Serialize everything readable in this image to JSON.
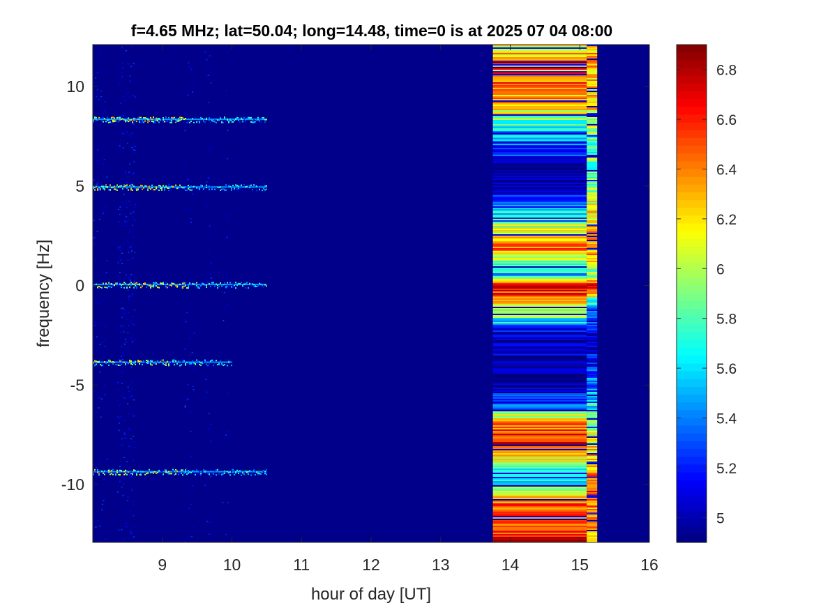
{
  "chart_data": {
    "type": "heatmap",
    "title": "f=4.65 MHz;  lat=50.04; long=14.48, time=0 is at 2025 07 04 08:00",
    "xlabel": "hour of day [UT]",
    "ylabel": "frequency [Hz]",
    "xlim": [
      8.0,
      16.0
    ],
    "ylim": [
      -12.9,
      12.1
    ],
    "xticks": [
      9,
      10,
      11,
      12,
      13,
      14,
      15,
      16
    ],
    "yticks": [
      10,
      5,
      0,
      -5,
      -10
    ],
    "background_value": 4.92,
    "colorbar": {
      "colormap": "jet",
      "clim": [
        4.9,
        6.9
      ],
      "ticks": [
        6.8,
        6.6,
        6.4,
        6.2,
        6.0,
        5.8,
        5.6,
        5.4,
        5.2,
        5.0
      ],
      "tick_labels": [
        "6.8",
        "6.6",
        "6.4",
        "6.2",
        "6",
        "5.8",
        "5.6",
        "5.4",
        "5.2",
        "5"
      ]
    },
    "signal_traces": [
      {
        "frequency": 8.35,
        "x_start": 8.0,
        "x_end": 10.5
      },
      {
        "frequency": 4.95,
        "x_start": 8.0,
        "x_end": 10.5
      },
      {
        "frequency": 0.05,
        "x_start": 8.0,
        "x_end": 10.5
      },
      {
        "frequency": -3.85,
        "x_start": 8.0,
        "x_end": 10.0
      },
      {
        "frequency": -9.35,
        "x_start": 8.0,
        "x_end": 10.5
      }
    ],
    "broadband_blocks": [
      {
        "x_start": 13.75,
        "x_end": 15.1,
        "profile": [
          {
            "frequency": 12.1,
            "value": 6.2
          },
          {
            "frequency": 11.0,
            "value": 6.4
          },
          {
            "frequency": 10.0,
            "value": 6.5
          },
          {
            "frequency": 9.3,
            "value": 6.3
          },
          {
            "frequency": 8.8,
            "value": 6.1
          },
          {
            "frequency": 8.0,
            "value": 5.7
          },
          {
            "frequency": 7.0,
            "value": 5.3
          },
          {
            "frequency": 6.0,
            "value": 5.0
          },
          {
            "frequency": 5.0,
            "value": 4.95
          },
          {
            "frequency": 4.0,
            "value": 5.3
          },
          {
            "frequency": 3.5,
            "value": 5.8
          },
          {
            "frequency": 2.5,
            "value": 6.2
          },
          {
            "frequency": 2.0,
            "value": 6.5
          },
          {
            "frequency": 1.3,
            "value": 6.0
          },
          {
            "frequency": 0.6,
            "value": 5.5
          },
          {
            "frequency": 0.0,
            "value": 6.8
          },
          {
            "frequency": -0.8,
            "value": 6.2
          },
          {
            "frequency": -1.6,
            "value": 5.8
          },
          {
            "frequency": -2.3,
            "value": 5.1
          },
          {
            "frequency": -3.0,
            "value": 4.95
          },
          {
            "frequency": -5.0,
            "value": 4.95
          },
          {
            "frequency": -5.8,
            "value": 5.3
          },
          {
            "frequency": -6.6,
            "value": 6.2
          },
          {
            "frequency": -7.2,
            "value": 6.5
          },
          {
            "frequency": -8.0,
            "value": 6.7
          },
          {
            "frequency": -8.8,
            "value": 6.0
          },
          {
            "frequency": -9.6,
            "value": 5.4
          },
          {
            "frequency": -10.5,
            "value": 6.3
          },
          {
            "frequency": -11.3,
            "value": 6.5
          },
          {
            "frequency": -12.0,
            "value": 6.4
          },
          {
            "frequency": -12.9,
            "value": 6.7
          }
        ]
      },
      {
        "x_start": 15.1,
        "x_end": 15.25,
        "profile": [
          {
            "frequency": 12.1,
            "value": 6.3
          },
          {
            "frequency": 9.0,
            "value": 6.2
          },
          {
            "frequency": 7.0,
            "value": 5.8
          },
          {
            "frequency": 5.0,
            "value": 5.9
          },
          {
            "frequency": 3.5,
            "value": 6.2
          },
          {
            "frequency": 2.0,
            "value": 6.5
          },
          {
            "frequency": 0.5,
            "value": 5.8
          },
          {
            "frequency": 0.0,
            "value": 6.7
          },
          {
            "frequency": -1.0,
            "value": 5.4
          },
          {
            "frequency": -3.0,
            "value": 5.0
          },
          {
            "frequency": -5.0,
            "value": 5.4
          },
          {
            "frequency": -6.5,
            "value": 5.8
          },
          {
            "frequency": -8.0,
            "value": 6.2
          },
          {
            "frequency": -10.0,
            "value": 6.5
          },
          {
            "frequency": -12.9,
            "value": 6.3
          }
        ]
      }
    ]
  }
}
